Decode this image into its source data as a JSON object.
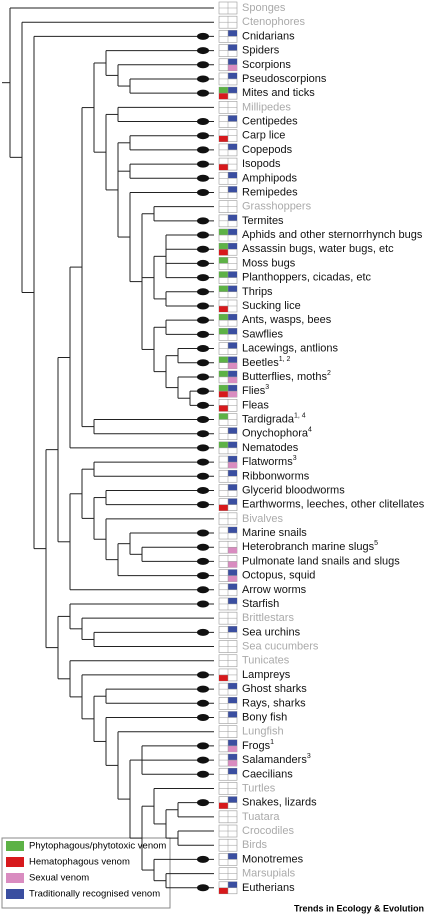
{
  "taxa": [
    {
      "label": "Sponges",
      "cells": []
    },
    {
      "label": "Ctenophores",
      "cells": []
    },
    {
      "label": "Cnidarians",
      "cells": [
        3
      ]
    },
    {
      "label": "Spiders",
      "cells": [
        3
      ]
    },
    {
      "label": "Scorpions",
      "cells": [
        3,
        2
      ]
    },
    {
      "label": "Pseudoscorpions",
      "cells": [
        3
      ]
    },
    {
      "label": "Mites and ticks",
      "cells": [
        0,
        1,
        3
      ]
    },
    {
      "label": "Millipedes",
      "cells": []
    },
    {
      "label": "Centipedes",
      "cells": [
        3
      ]
    },
    {
      "label": "Carp lice",
      "cells": [
        1
      ]
    },
    {
      "label": "Copepods",
      "cells": [
        3
      ]
    },
    {
      "label": "Isopods",
      "cells": [
        1
      ]
    },
    {
      "label": "Amphipods",
      "cells": [
        3
      ]
    },
    {
      "label": "Remipedes",
      "cells": [
        3
      ]
    },
    {
      "label": "Grasshoppers",
      "cells": []
    },
    {
      "label": "Termites",
      "cells": [
        3
      ]
    },
    {
      "label": "Aphids and other sternorrhynch bugs",
      "cells": [
        0,
        3
      ]
    },
    {
      "label": "Assassin bugs, water bugs, etc",
      "cells": [
        0,
        1,
        3
      ]
    },
    {
      "label": "Moss bugs",
      "cells": [
        0
      ]
    },
    {
      "label": "Planthoppers, cicadas, etc",
      "cells": [
        0,
        3
      ]
    },
    {
      "label": "Thrips",
      "cells": [
        0,
        3
      ]
    },
    {
      "label": "Sucking lice",
      "cells": [
        1
      ]
    },
    {
      "label": "Ants, wasps, bees",
      "cells": [
        0,
        3
      ]
    },
    {
      "label": "Sawflies",
      "cells": [
        0,
        3
      ]
    },
    {
      "label": "Lacewings, antlions",
      "cells": [
        3
      ]
    },
    {
      "label": "Beetles",
      "sup": "1, 2",
      "cells": [
        0,
        2,
        3
      ]
    },
    {
      "label": "Butterflies, moths",
      "sup": "2",
      "cells": [
        0,
        2,
        3
      ]
    },
    {
      "label": "Flies",
      "sup": "3",
      "cells": [
        0,
        1,
        2,
        3
      ]
    },
    {
      "label": "Fleas",
      "cells": [
        1
      ]
    },
    {
      "label": "Tardigrada",
      "sup": "1, 4",
      "cells": [
        0
      ]
    },
    {
      "label": "Onychophora",
      "sup": "4",
      "cells": [
        3
      ]
    },
    {
      "label": "Nematodes",
      "cells": [
        0,
        3
      ]
    },
    {
      "label": "Flatworms",
      "sup": "3",
      "cells": [
        2,
        3
      ]
    },
    {
      "label": "Ribbonworms",
      "cells": [
        3
      ]
    },
    {
      "label": "Glycerid bloodworms",
      "cells": [
        3
      ]
    },
    {
      "label": "Earthworms, leeches, other clitellates",
      "cells": [
        1,
        3
      ]
    },
    {
      "label": "Bivalves",
      "cells": []
    },
    {
      "label": "Marine snails",
      "cells": [
        3
      ]
    },
    {
      "label": "Heterobranch marine slugs",
      "sup": "5",
      "cells": [
        2
      ]
    },
    {
      "label": "Pulmonate land snails and slugs",
      "cells": [
        2
      ]
    },
    {
      "label": "Octopus, squid",
      "cells": [
        2,
        3
      ]
    },
    {
      "label": "Arrow worms",
      "cells": [
        3
      ]
    },
    {
      "label": "Starfish",
      "cells": [
        3
      ]
    },
    {
      "label": "Brittlestars",
      "cells": []
    },
    {
      "label": "Sea urchins",
      "cells": [
        3
      ]
    },
    {
      "label": "Sea cucumbers",
      "cells": []
    },
    {
      "label": "Tunicates",
      "cells": []
    },
    {
      "label": "Lampreys",
      "cells": [
        1
      ]
    },
    {
      "label": "Ghost sharks",
      "cells": [
        3
      ]
    },
    {
      "label": "Rays, sharks",
      "cells": [
        3
      ]
    },
    {
      "label": "Bony fish",
      "cells": [
        3
      ]
    },
    {
      "label": "Lungfish",
      "cells": []
    },
    {
      "label": "Frogs",
      "sup": "1",
      "cells": [
        2,
        3
      ]
    },
    {
      "label": "Salamanders",
      "sup": "3",
      "cells": [
        2,
        3
      ]
    },
    {
      "label": "Caecilians",
      "cells": [
        3
      ]
    },
    {
      "label": "Turtles",
      "cells": []
    },
    {
      "label": "Snakes, lizards",
      "cells": [
        1,
        3
      ]
    },
    {
      "label": "Tuatara",
      "cells": []
    },
    {
      "label": "Crocodiles",
      "cells": []
    },
    {
      "label": "Birds",
      "cells": []
    },
    {
      "label": "Monotremes",
      "cells": [
        3
      ]
    },
    {
      "label": "Marsupials",
      "cells": []
    },
    {
      "label": "Eutherians",
      "cells": [
        1,
        3
      ]
    }
  ],
  "legend": [
    {
      "label": "Phytophagous/phytotoxic venom",
      "color": "#5db246"
    },
    {
      "label": "Hematophagous venom",
      "color": "#d7191c"
    },
    {
      "label": "Sexual venom",
      "color": "#d98cc0"
    },
    {
      "label": "Traditionally recognised venom",
      "color": "#3a4ea0"
    }
  ],
  "footer": "Trends in Ecology & Evolution"
}
